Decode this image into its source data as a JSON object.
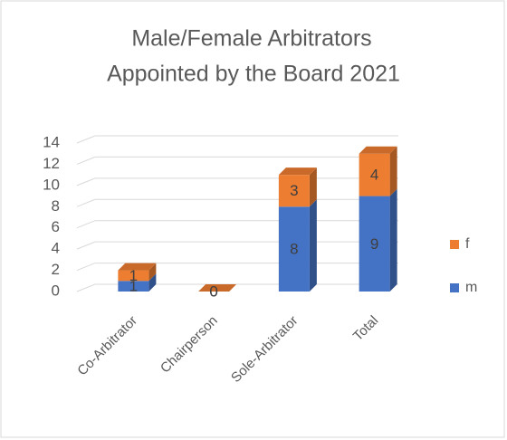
{
  "chart_data": {
    "type": "bar3d_stacked",
    "title": [
      "Male/Female Arbitrators",
      "Appointed by the Board 2021"
    ],
    "categories": [
      "Co-Arbitrator",
      "Chairperson",
      "Sole-Arbitrator",
      "Total"
    ],
    "series": [
      {
        "name": "m",
        "color": "#4472c4",
        "values": [
          1,
          0,
          8,
          9
        ]
      },
      {
        "name": "f",
        "color": "#ed7d31",
        "values": [
          1,
          0,
          3,
          4
        ]
      }
    ],
    "ylim": [
      0,
      14
    ],
    "yticks": [
      0,
      2,
      4,
      6,
      8,
      10,
      12,
      14
    ],
    "grid": true,
    "legend": "right"
  }
}
